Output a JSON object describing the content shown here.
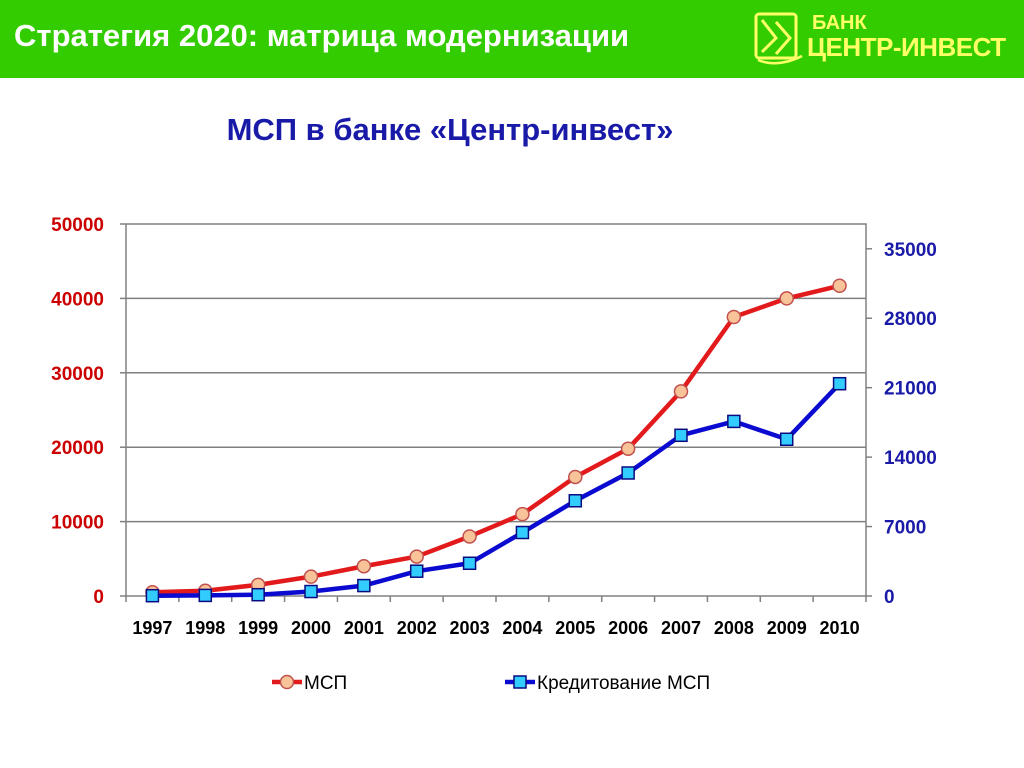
{
  "header": {
    "title": "Стратегия 2020: матрица модернизации",
    "background": "#33cc00",
    "logo": {
      "line1": "БАНК",
      "line2": "ЦЕНТР-ИНВЕСТ",
      "color": "#ffff66",
      "icon": "bank-emblem-icon"
    }
  },
  "slide_title": "МСП в банке «Центр-инвест»",
  "chart_data": {
    "type": "line",
    "x": [
      "1997",
      "1998",
      "1999",
      "2000",
      "2001",
      "2002",
      "2003",
      "2004",
      "2005",
      "2006",
      "2007",
      "2008",
      "2009",
      "2010"
    ],
    "yleft": {
      "ylim": [
        0,
        50000
      ],
      "ticks": [
        "0",
        "10000",
        "20000",
        "30000",
        "40000",
        "50000"
      ],
      "color": "#cc0000"
    },
    "yright": {
      "ylim": [
        0,
        37500
      ],
      "ticks": [
        "0",
        "7000",
        "14000",
        "21000",
        "28000",
        "35000"
      ],
      "color": "#1a1aa8"
    },
    "grid": true,
    "legend_position": "bottom",
    "series": [
      {
        "name": "МСП",
        "axis": "left",
        "color": "#e31a1c",
        "marker": "circle",
        "marker_fill": "#f9c39a",
        "values": [
          500,
          700,
          1500,
          2600,
          4000,
          5300,
          8000,
          11000,
          16000,
          19800,
          27500,
          37500,
          40000,
          41700
        ]
      },
      {
        "name": "Кредитование МСП",
        "axis": "right",
        "color": "#0a0ad0",
        "marker": "square",
        "marker_fill": "#33ccff",
        "values": [
          30,
          60,
          130,
          450,
          1050,
          2500,
          3300,
          6400,
          9600,
          12400,
          16200,
          17600,
          15800,
          21400
        ]
      }
    ]
  }
}
